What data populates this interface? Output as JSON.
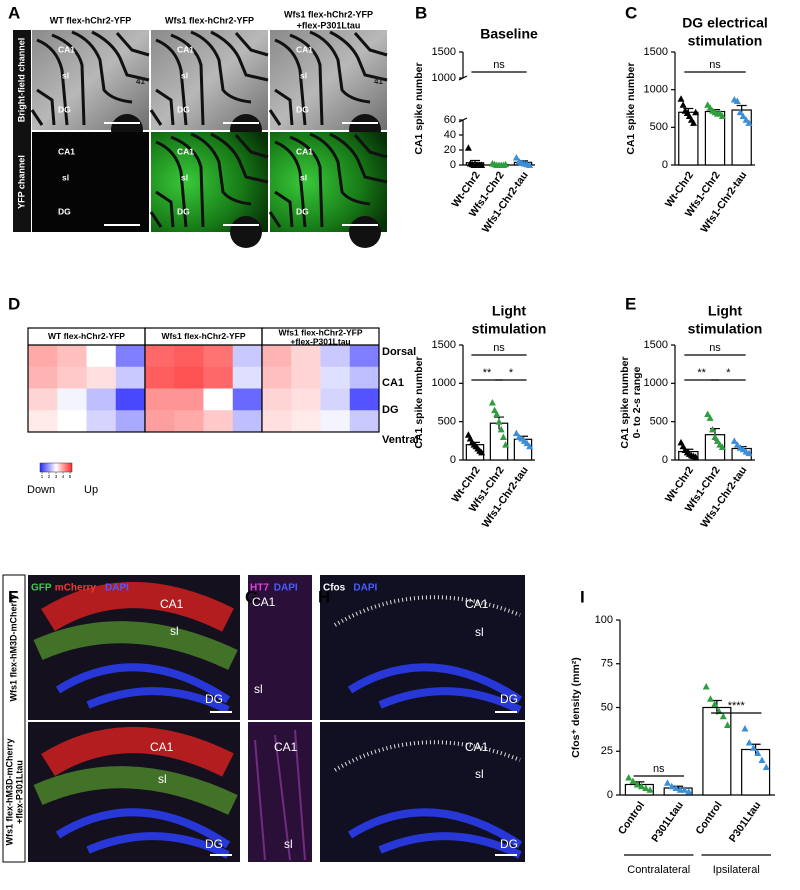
{
  "panels": {
    "letters": [
      "A",
      "B",
      "C",
      "D",
      "E",
      "F",
      "G",
      "H",
      "I"
    ],
    "A": {
      "columns": [
        [
          "WT flex-hChr2-YFP"
        ],
        [
          "Wfs1 flex-hChr2-YFP"
        ],
        [
          "Wfs1 flex-hChr2-YFP",
          "+flex-P301Ltau"
        ]
      ],
      "rows": [
        "Bright-field channel",
        "YFP channel"
      ],
      "regions": [
        "CA1",
        "sl",
        "DG"
      ],
      "scale_number": "41"
    },
    "F": {
      "stains": [
        "GFP",
        "mCherry",
        "DAPI"
      ],
      "rows": [
        [
          "Wfs1 flex-hM3D-mCherry"
        ],
        [
          "Wfs1 flex-hM3D-mCherry",
          "+flex-P301Ltau"
        ]
      ],
      "regions": [
        "CA1",
        "sl",
        "DG"
      ]
    },
    "G": {
      "stains": [
        "HT7",
        "DAPI"
      ],
      "regions": [
        "CA1",
        "sl"
      ]
    },
    "H": {
      "stains": [
        "Cfos",
        "DAPI"
      ],
      "regions": [
        "CA1",
        "sl",
        "DG"
      ]
    }
  },
  "chart_data": [
    {
      "type": "bar",
      "title_lines": [
        "Baseline"
      ],
      "ylabel_lines": [
        "CA1 spike number"
      ],
      "categories": [
        "Wt-Chr2",
        "Wfs1-Chr2",
        "Wfs1-Chr2-tau"
      ],
      "colors": [
        "#000000",
        "#2e9e3e",
        "#3a8fd8"
      ],
      "values": [
        3,
        0.6,
        3.5
      ],
      "errors": [
        3,
        0.3,
        2
      ],
      "points": [
        [
          23,
          2,
          1,
          0,
          0,
          0,
          0,
          0
        ],
        [
          2,
          1,
          0,
          0,
          0,
          0,
          1
        ],
        [
          10,
          5,
          3,
          2,
          1,
          0
        ]
      ],
      "ylim": [
        0,
        60
      ],
      "yticks": [
        0,
        20,
        40,
        60
      ],
      "ylim_break": [
        1000,
        1500
      ],
      "yticks_break": [
        1000,
        1500
      ],
      "significance": [
        {
          "from": 0,
          "to": 2,
          "label": "ns"
        }
      ]
    },
    {
      "type": "bar",
      "title_lines": [
        "DG electrical",
        "stimulation"
      ],
      "ylabel_lines": [
        "CA1 spike number"
      ],
      "categories": [
        "Wt-Chr2",
        "Wfs1-Chr2",
        "Wfs1-Chr2-tau"
      ],
      "colors": [
        "#000000",
        "#2e9e3e",
        "#3a8fd8"
      ],
      "values": [
        700,
        710,
        730
      ],
      "errors": [
        50,
        25,
        60
      ],
      "points": [
        [
          880,
          800,
          720,
          690,
          650,
          600,
          560,
          700
        ],
        [
          800,
          760,
          720,
          700,
          680,
          690,
          650
        ],
        [
          870,
          850,
          700,
          650,
          600,
          560
        ]
      ],
      "ylim": [
        0,
        1500
      ],
      "yticks": [
        0,
        500,
        1000,
        1500
      ],
      "significance": [
        {
          "from": 0,
          "to": 2,
          "label": "ns"
        }
      ]
    },
    {
      "type": "heatmap",
      "groups": [
        [
          "WT flex-hChr2-YFP"
        ],
        [
          "Wfs1 flex-hChr2-YFP"
        ],
        [
          "Wfs1 flex-hChr2-YFP",
          "+flex-P301Ltau"
        ]
      ],
      "row_labels": [
        "Dorsal",
        "CA1",
        "DG",
        "Ventral"
      ],
      "values": [
        [
          [
            3.8,
            3.6,
            3.0,
            1.8
          ],
          [
            3.7,
            3.5,
            3.3,
            2.5
          ],
          [
            3.4,
            2.9,
            2.4,
            1.3
          ],
          [
            3.2,
            3.0,
            2.6,
            2.2
          ]
        ],
        [
          [
            4.4,
            4.5,
            4.3,
            2.5
          ],
          [
            4.5,
            4.6,
            4.4,
            2.7
          ],
          [
            4.0,
            4.0,
            3.0,
            1.6
          ],
          [
            3.9,
            3.8,
            3.5,
            2.4
          ]
        ],
        [
          [
            3.7,
            3.4,
            2.5,
            1.8
          ],
          [
            3.6,
            3.4,
            2.7,
            2.4
          ],
          [
            3.4,
            3.3,
            2.6,
            1.4
          ],
          [
            3.3,
            3.2,
            2.9,
            2.5
          ]
        ]
      ],
      "vlim": [
        1,
        5
      ],
      "scale_ticks": [
        1,
        2,
        3,
        4,
        5
      ],
      "legend_labels": [
        "Down",
        "Up"
      ]
    },
    {
      "type": "bar",
      "title_lines": [
        "Light",
        "stimulation"
      ],
      "ylabel_lines": [
        "CA1 spike number"
      ],
      "categories": [
        "Wt-Chr2",
        "Wfs1-Chr2",
        "Wfs1-Chr2-tau"
      ],
      "colors": [
        "#000000",
        "#2e9e3e",
        "#3a8fd8"
      ],
      "values": [
        200,
        480,
        270
      ],
      "errors": [
        30,
        80,
        40
      ],
      "points": [
        [
          330,
          280,
          230,
          200,
          180,
          150,
          120,
          100
        ],
        [
          750,
          650,
          600,
          500,
          400,
          300,
          200
        ],
        [
          350,
          300,
          280,
          250,
          220,
          180
        ]
      ],
      "ylim": [
        0,
        1500
      ],
      "yticks": [
        0,
        500,
        1000,
        1500
      ],
      "significance": [
        {
          "from": 0,
          "to": 2,
          "label": "ns"
        },
        {
          "from": 0,
          "to": 1,
          "label": "**"
        },
        {
          "from": 1,
          "to": 2,
          "label": "*"
        }
      ]
    },
    {
      "type": "bar",
      "title_lines": [
        "Light",
        "stimulation"
      ],
      "ylabel_lines": [
        "CA1 spike number",
        "0- to 2-s range"
      ],
      "categories": [
        "Wt-Chr2",
        "Wfs1-Chr2",
        "Wfs1-Chr2-tau"
      ],
      "colors": [
        "#000000",
        "#2e9e3e",
        "#3a8fd8"
      ],
      "values": [
        110,
        330,
        150
      ],
      "errors": [
        30,
        80,
        25
      ],
      "points": [
        [
          230,
          180,
          130,
          100,
          80,
          60,
          50,
          40
        ],
        [
          600,
          550,
          400,
          300,
          250,
          200,
          170
        ],
        [
          250,
          200,
          160,
          140,
          110,
          90
        ]
      ],
      "ylim": [
        0,
        1500
      ],
      "yticks": [
        0,
        500,
        1000,
        1500
      ],
      "significance": [
        {
          "from": 0,
          "to": 2,
          "label": "ns"
        },
        {
          "from": 0,
          "to": 1,
          "label": "**"
        },
        {
          "from": 1,
          "to": 2,
          "label": "*"
        }
      ]
    },
    {
      "type": "bar",
      "title_lines": [],
      "ylabel_lines": [
        "Cfos⁺ density (mm²)"
      ],
      "categories": [
        "Control",
        "P301Ltau",
        "Control",
        "P301Ltau"
      ],
      "groups": [
        "Contralateral",
        "Ipsilateral"
      ],
      "colors": [
        "#2e9e3e",
        "#3a8fd8",
        "#2e9e3e",
        "#3a8fd8"
      ],
      "values": [
        6,
        4,
        50,
        26
      ],
      "errors": [
        1.5,
        1,
        4,
        3
      ],
      "points": [
        [
          10,
          8,
          6,
          5,
          4,
          3
        ],
        [
          7,
          5,
          4,
          3,
          3,
          2
        ],
        [
          62,
          55,
          52,
          48,
          45,
          40
        ],
        [
          38,
          30,
          27,
          24,
          20,
          16
        ]
      ],
      "ylim": [
        0,
        100
      ],
      "yticks": [
        0,
        25,
        50,
        75,
        100
      ],
      "significance": [
        {
          "from": 0,
          "to": 1,
          "label": "ns"
        },
        {
          "from": 2,
          "to": 3,
          "label": "****"
        }
      ]
    }
  ]
}
